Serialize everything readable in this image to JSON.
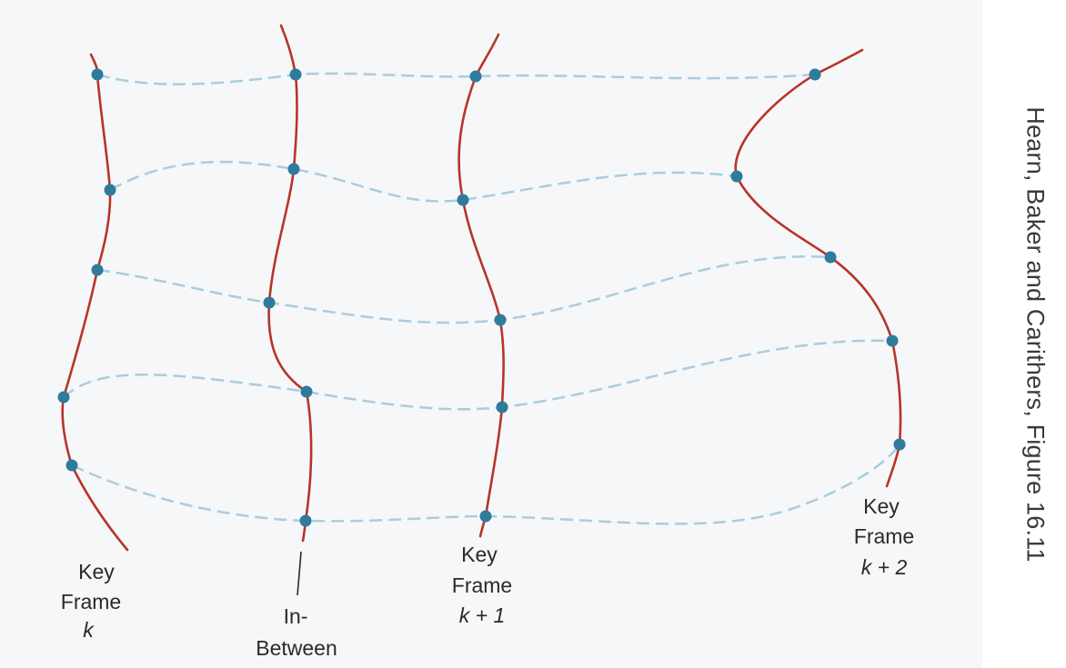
{
  "credit": "Hearn, Baker and Carithers, Figure 16.11",
  "labels": {
    "key_frame_k": {
      "line1": "Key",
      "line2": "Frame",
      "line3": "k"
    },
    "in_between": {
      "line1": "In-",
      "line2": "Between"
    },
    "key_frame_k1": {
      "line1": "Key",
      "line2": "Frame",
      "line3": "k + 1"
    },
    "key_frame_k2": {
      "line1": "Key",
      "line2": "Frame",
      "line3": "k + 2"
    }
  },
  "colors": {
    "curve": "#b8342a",
    "dashed_path": "#a8cde0",
    "point": "#2e7b9c",
    "text": "#2a2a2a"
  }
}
